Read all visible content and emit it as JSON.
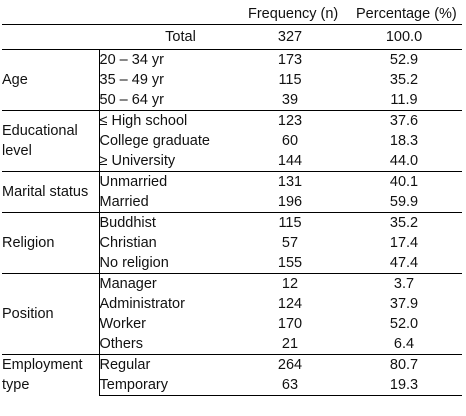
{
  "header": {
    "frequency": "Frequency (n)",
    "percentage": "Percentage (%)"
  },
  "total": {
    "label": "Total",
    "n": "327",
    "pct": "100.0"
  },
  "groups": [
    {
      "category": "Age",
      "rows": [
        {
          "label": "20 – 34 yr",
          "n": "173",
          "pct": "52.9"
        },
        {
          "label": "35 – 49 yr",
          "n": "115",
          "pct": "35.2"
        },
        {
          "label": "50 – 64 yr",
          "n": "39",
          "pct": "11.9"
        }
      ]
    },
    {
      "category": "Educational level",
      "rows": [
        {
          "label": "≤ High school",
          "n": "123",
          "pct": "37.6"
        },
        {
          "label": "College graduate",
          "n": "60",
          "pct": "18.3"
        },
        {
          "label": "≥ University",
          "n": "144",
          "pct": "44.0"
        }
      ]
    },
    {
      "category": "Marital status",
      "rows": [
        {
          "label": "Unmarried",
          "n": "131",
          "pct": "40.1"
        },
        {
          "label": "Married",
          "n": "196",
          "pct": "59.9"
        }
      ]
    },
    {
      "category": "Religion",
      "rows": [
        {
          "label": "Buddhist",
          "n": "115",
          "pct": "35.2"
        },
        {
          "label": "Christian",
          "n": "57",
          "pct": "17.4"
        },
        {
          "label": "No religion",
          "n": "155",
          "pct": "47.4"
        }
      ]
    },
    {
      "category": "Position",
      "rows": [
        {
          "label": "Manager",
          "n": "12",
          "pct": "3.7"
        },
        {
          "label": "Administrator",
          "n": "124",
          "pct": "37.9"
        },
        {
          "label": "Worker",
          "n": "170",
          "pct": "52.0"
        },
        {
          "label": "Others",
          "n": "21",
          "pct": "6.4"
        }
      ]
    },
    {
      "category": "Employment type",
      "rows": [
        {
          "label": "Regular",
          "n": "264",
          "pct": "80.7"
        },
        {
          "label": "Temporary",
          "n": "63",
          "pct": "19.3"
        }
      ]
    }
  ]
}
